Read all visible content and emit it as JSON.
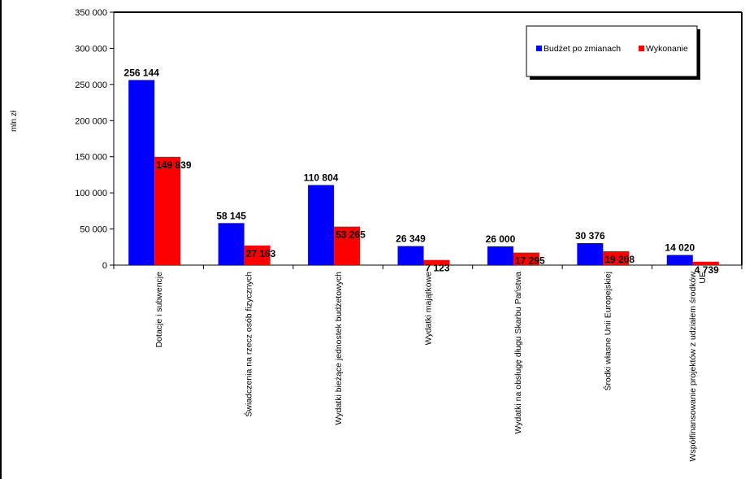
{
  "chart_data": {
    "type": "bar",
    "ylabel": "mln zł",
    "ylim": [
      0,
      350000
    ],
    "yticks": [
      0,
      50000,
      100000,
      150000,
      200000,
      250000,
      300000,
      350000
    ],
    "ytick_labels": [
      "0",
      "50 000",
      "100 000",
      "150 000",
      "200 000",
      "250 000",
      "300 000",
      "350 000"
    ],
    "categories": [
      [
        "Dotacje i subwencje"
      ],
      [
        "Świadczenia na rzecz osób fizycznych"
      ],
      [
        "Wydatki bieżące jednostek budżetowych"
      ],
      [
        "Wydatki majątkowe"
      ],
      [
        "Wydatki na obsługę długu Skarbu Państwa"
      ],
      [
        "Środki własne Unii Europejskiej"
      ],
      [
        "Współfinansowanie projektów z udziałem środków",
        "UE"
      ]
    ],
    "series": [
      {
        "name": "Budżet po zmianach",
        "color": "#0000ff",
        "values": [
          256144,
          58145,
          110804,
          26349,
          26000,
          30376,
          14020
        ],
        "labels": [
          "256 144",
          "58 145",
          "110 804",
          "26 349",
          "26 000",
          "30 376",
          "14 020"
        ]
      },
      {
        "name": "Wykonanie",
        "color": "#ff0000",
        "values": [
          149839,
          27163,
          53265,
          7123,
          17295,
          19208,
          4739
        ],
        "labels": [
          "149 839",
          "27 163",
          "53 265",
          "7 123",
          "17 295",
          "19 208",
          "4 739"
        ]
      }
    ],
    "grid": false,
    "legend": "top-right"
  }
}
